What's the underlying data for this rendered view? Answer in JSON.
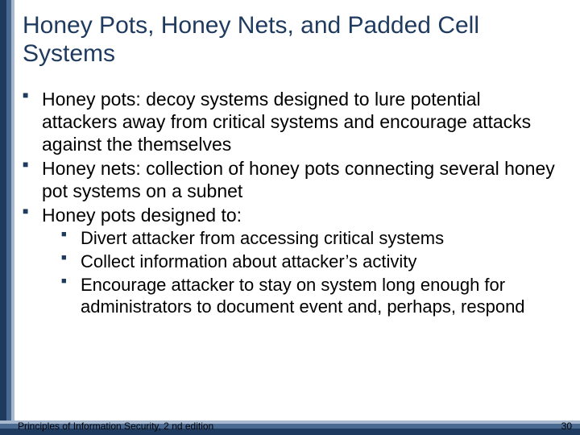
{
  "colors": {
    "border_dark": "#1f3a5f",
    "border_mid": "#4a6a92",
    "border_light": "#a8b9cf",
    "title": "#1f3a5f",
    "text": "#000000",
    "bullet": "#1f3a5f",
    "background": "#ffffff"
  },
  "typography": {
    "family": "Arial",
    "title_fontsize_pt": 30,
    "lvl1_fontsize_pt": 23,
    "lvl2_fontsize_pt": 22,
    "footer_fontsize_pt": 12
  },
  "title": "Honey Pots, Honey Nets, and Padded Cell Systems",
  "bullets": {
    "b1": "Honey pots: decoy systems designed to lure potential attackers away from critical systems and encourage attacks against the themselves",
    "b2": "Honey nets: collection of honey pots connecting several honey pot systems on a subnet",
    "b3": "Honey pots designed to:",
    "b3_sub": {
      "s1": "Divert attacker from accessing critical systems",
      "s2": "Collect information about attacker’s activity",
      "s3": "Encourage attacker to stay on system long enough for administrators to document event and, perhaps, respond"
    }
  },
  "footer": "Principles of Information Security, 2 nd edition",
  "slide_number": "30"
}
